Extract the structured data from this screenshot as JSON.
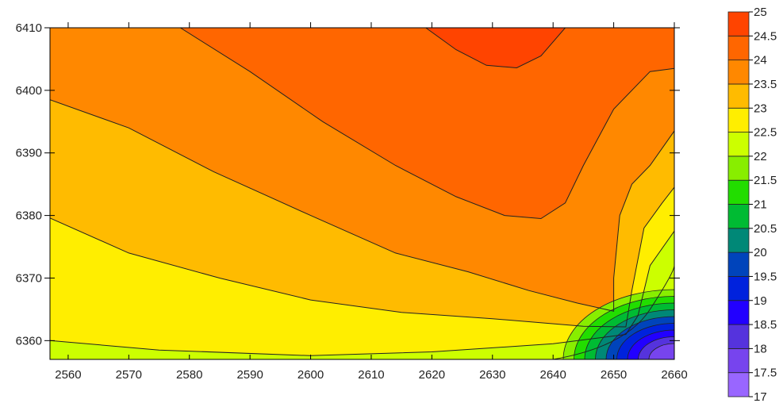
{
  "chart_data": {
    "type": "contour",
    "title": "",
    "xlabel": "",
    "ylabel": "",
    "xlim": [
      2557,
      2660
    ],
    "ylim": [
      6357,
      6410
    ],
    "x_ticks": [
      2560,
      2570,
      2580,
      2590,
      2600,
      2610,
      2620,
      2630,
      2640,
      2650,
      2660
    ],
    "y_ticks": [
      6360,
      6370,
      6380,
      6390,
      6400,
      6410
    ],
    "grid": false,
    "legend": "right",
    "levels": [
      17,
      17.5,
      18,
      18.5,
      19,
      19.5,
      20,
      20.5,
      21,
      21.5,
      22,
      22.5,
      23,
      23.5,
      24,
      24.5,
      25
    ],
    "colorbar_labels": [
      "17",
      "17.5",
      "18",
      "18.5",
      "19",
      "19.5",
      "20",
      "20.5",
      "21",
      "21.5",
      "22",
      "22.5",
      "23",
      "23.5",
      "24",
      "24.5",
      "25"
    ],
    "level_colors": [
      "#9966ff",
      "#7744ee",
      "#5533dd",
      "#2200ff",
      "#0022dd",
      "#0044bb",
      "#008877",
      "#00bb33",
      "#22dd00",
      "#88ee00",
      "#ccff00",
      "#ffee00",
      "#ffbb00",
      "#ff8800",
      "#ff6600",
      "#ff4400",
      "#ff1100"
    ],
    "contours": [
      {
        "level": 24.5,
        "points": [
          [
            2619,
            6410
          ],
          [
            2624,
            6406.5
          ],
          [
            2629,
            6404
          ],
          [
            2634,
            6403.6
          ],
          [
            2638,
            6405.5
          ],
          [
            2642,
            6410
          ]
        ]
      },
      {
        "level": 24,
        "points": [
          [
            2578.5,
            6410
          ],
          [
            2590,
            6403
          ],
          [
            2602,
            6395
          ],
          [
            2614,
            6388
          ],
          [
            2624,
            6383
          ],
          [
            2632,
            6380
          ],
          [
            2638,
            6379.5
          ],
          [
            2642,
            6382
          ],
          [
            2645,
            6388
          ],
          [
            2650,
            6397
          ],
          [
            2656,
            6403
          ],
          [
            2660,
            6403.5
          ]
        ]
      },
      {
        "level": 23.5,
        "points": [
          [
            2557,
            6398.5
          ],
          [
            2570,
            6394
          ],
          [
            2584,
            6387
          ],
          [
            2600,
            6380
          ],
          [
            2614,
            6374
          ],
          [
            2626,
            6371
          ],
          [
            2636,
            6368
          ],
          [
            2644,
            6366
          ],
          [
            2650,
            6364.7
          ],
          [
            2650,
            6370
          ],
          [
            2651,
            6380
          ],
          [
            2653,
            6385
          ],
          [
            2656,
            6388
          ],
          [
            2660,
            6393.5
          ]
        ]
      },
      {
        "level": 23,
        "points": [
          [
            2557,
            6379.6
          ],
          [
            2570,
            6374
          ],
          [
            2585,
            6370
          ],
          [
            2600,
            6366.5
          ],
          [
            2615,
            6364.5
          ],
          [
            2630,
            6363.5
          ],
          [
            2645,
            6362.3
          ],
          [
            2652,
            6362.2
          ],
          [
            2653,
            6368
          ],
          [
            2655,
            6378
          ],
          [
            2658,
            6382
          ],
          [
            2660,
            6384.5
          ]
        ]
      },
      {
        "level": 22.5,
        "points": [
          [
            2557,
            6360
          ],
          [
            2575,
            6358.5
          ],
          [
            2600,
            6357.6
          ],
          [
            2620,
            6358.2
          ],
          [
            2640,
            6359.5
          ],
          [
            2652,
            6361
          ],
          [
            2654,
            6364
          ],
          [
            2656,
            6372
          ],
          [
            2660,
            6377.5
          ]
        ]
      }
    ]
  }
}
